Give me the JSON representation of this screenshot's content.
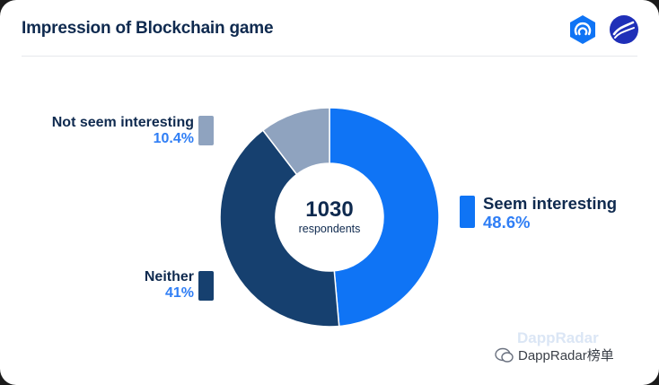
{
  "header": {
    "title": "Impression of Blockchain game"
  },
  "logos": [
    "dappradar-icon",
    "brand-wave-icon"
  ],
  "chart_data": {
    "type": "pie",
    "variant": "donut",
    "slices": [
      {
        "label": "Seem interesting",
        "value": 48.6,
        "display": "48.6%",
        "color": "#0f74f5"
      },
      {
        "label": "Neither",
        "value": 41,
        "display": "41%",
        "color": "#16406f"
      },
      {
        "label": "Not seem interesting",
        "value": 10.4,
        "display": "10.4%",
        "color": "#8fa3bf"
      }
    ],
    "center": {
      "value": "1030",
      "label": "respondents"
    }
  },
  "watermark": {
    "text": "DappRadar榜单",
    "ghost": "DappRadar"
  }
}
